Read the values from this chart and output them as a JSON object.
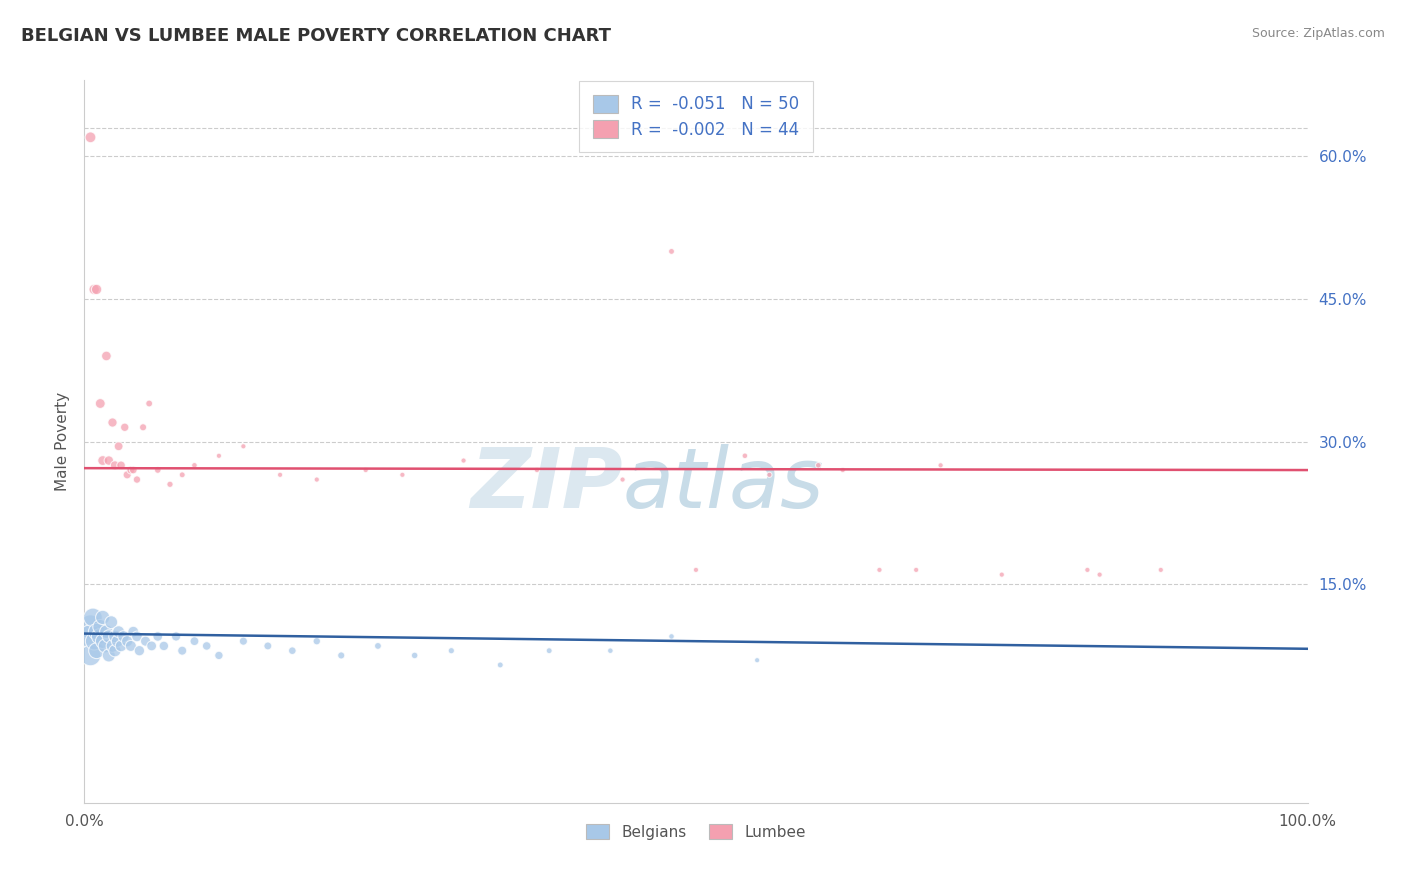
{
  "title": "BELGIAN VS LUMBEE MALE POVERTY CORRELATION CHART",
  "source": "Source: ZipAtlas.com",
  "ylabel": "Male Poverty",
  "right_yticks": [
    "60.0%",
    "45.0%",
    "30.0%",
    "15.0%"
  ],
  "right_ytick_vals": [
    0.6,
    0.45,
    0.3,
    0.15
  ],
  "xlim": [
    0.0,
    1.0
  ],
  "ylim": [
    -0.08,
    0.68
  ],
  "belgian_R": -0.051,
  "belgian_N": 50,
  "lumbee_R": -0.002,
  "lumbee_N": 44,
  "belgian_color": "#a8c8e8",
  "lumbee_color": "#f4a0b0",
  "belgian_line_color": "#3060a0",
  "lumbee_line_color": "#e05070",
  "background_color": "#ffffff",
  "title_fontsize": 13,
  "watermark_zip": "ZIP",
  "watermark_atlas": "atlas",
  "belgian_scatter_x": [
    0.005,
    0.005,
    0.005,
    0.007,
    0.008,
    0.01,
    0.01,
    0.012,
    0.013,
    0.015,
    0.015,
    0.017,
    0.018,
    0.02,
    0.02,
    0.022,
    0.023,
    0.025,
    0.025,
    0.027,
    0.028,
    0.03,
    0.032,
    0.035,
    0.038,
    0.04,
    0.043,
    0.045,
    0.05,
    0.055,
    0.06,
    0.065,
    0.075,
    0.08,
    0.09,
    0.1,
    0.11,
    0.13,
    0.15,
    0.17,
    0.19,
    0.21,
    0.24,
    0.27,
    0.3,
    0.34,
    0.38,
    0.43,
    0.48,
    0.55
  ],
  "belgian_scatter_y": [
    0.105,
    0.095,
    0.075,
    0.115,
    0.09,
    0.1,
    0.08,
    0.095,
    0.105,
    0.09,
    0.115,
    0.085,
    0.1,
    0.095,
    0.075,
    0.11,
    0.085,
    0.095,
    0.08,
    0.09,
    0.1,
    0.085,
    0.095,
    0.09,
    0.085,
    0.1,
    0.095,
    0.08,
    0.09,
    0.085,
    0.095,
    0.085,
    0.095,
    0.08,
    0.09,
    0.085,
    0.075,
    0.09,
    0.085,
    0.08,
    0.09,
    0.075,
    0.085,
    0.075,
    0.08,
    0.065,
    0.08,
    0.08,
    0.095,
    0.07
  ],
  "belgian_scatter_sizes": [
    300,
    280,
    220,
    180,
    160,
    140,
    130,
    120,
    115,
    110,
    105,
    100,
    95,
    90,
    88,
    85,
    83,
    80,
    78,
    75,
    73,
    70,
    68,
    65,
    63,
    60,
    58,
    55,
    52,
    50,
    48,
    46,
    44,
    42,
    40,
    38,
    36,
    34,
    32,
    30,
    28,
    26,
    24,
    22,
    20,
    18,
    18,
    16,
    16,
    14
  ],
  "lumbee_scatter_x": [
    0.005,
    0.008,
    0.01,
    0.013,
    0.015,
    0.018,
    0.02,
    0.023,
    0.025,
    0.028,
    0.03,
    0.033,
    0.035,
    0.038,
    0.04,
    0.043,
    0.048,
    0.053,
    0.06,
    0.07,
    0.08,
    0.09,
    0.11,
    0.13,
    0.16,
    0.19,
    0.23,
    0.26,
    0.31,
    0.37,
    0.44,
    0.5,
    0.56,
    0.62,
    0.68,
    0.75,
    0.82,
    0.88,
    0.48,
    0.54,
    0.6,
    0.65,
    0.7,
    0.83
  ],
  "lumbee_scatter_y": [
    0.62,
    0.46,
    0.46,
    0.34,
    0.28,
    0.39,
    0.28,
    0.32,
    0.275,
    0.295,
    0.275,
    0.315,
    0.265,
    0.27,
    0.27,
    0.26,
    0.315,
    0.34,
    0.27,
    0.255,
    0.265,
    0.275,
    0.285,
    0.295,
    0.265,
    0.26,
    0.27,
    0.265,
    0.28,
    0.27,
    0.26,
    0.165,
    0.265,
    0.27,
    0.165,
    0.16,
    0.165,
    0.165,
    0.5,
    0.285,
    0.275,
    0.165,
    0.275,
    0.16
  ],
  "lumbee_scatter_sizes": [
    60,
    55,
    55,
    50,
    50,
    48,
    46,
    44,
    42,
    40,
    38,
    36,
    34,
    32,
    30,
    28,
    26,
    24,
    22,
    20,
    18,
    16,
    14,
    14,
    14,
    14,
    14,
    14,
    14,
    14,
    14,
    14,
    14,
    14,
    14,
    14,
    14,
    14,
    18,
    16,
    16,
    14,
    14,
    14
  ],
  "lumbee_line_y_start": 0.272,
  "lumbee_line_y_end": 0.27,
  "belgian_line_y_start": 0.098,
  "belgian_line_y_end": 0.082
}
